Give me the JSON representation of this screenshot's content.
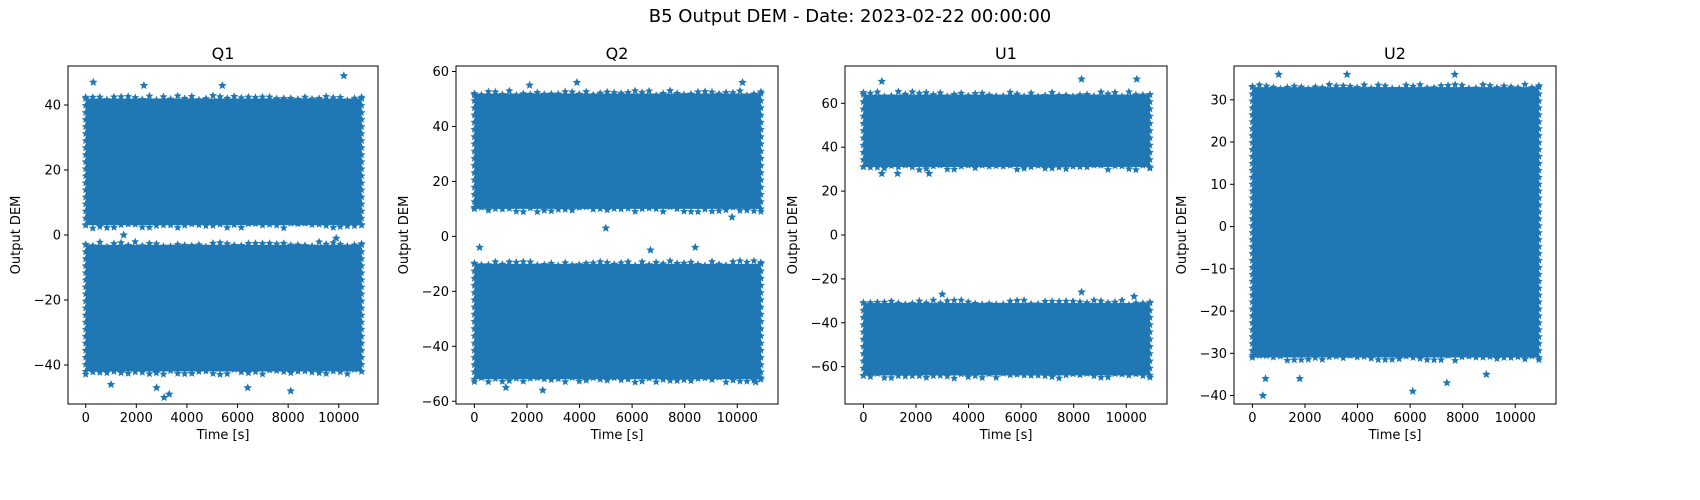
{
  "figure": {
    "suptitle": "B5 Output DEM - Date: 2023-02-22 00:00:00",
    "marker_color": "#1f77b4",
    "marker": "star"
  },
  "chart_data": [
    {
      "type": "scatter",
      "title": "Q1",
      "xlabel": "Time [s]",
      "ylabel": "Output DEM",
      "xlim": [
        -700,
        11550
      ],
      "ylim": [
        -52,
        52
      ],
      "xticks": [
        0,
        2000,
        4000,
        6000,
        8000,
        10000
      ],
      "yticks": [
        -40,
        -20,
        0,
        20,
        40
      ],
      "x_range": [
        0,
        10900
      ],
      "bands": [
        {
          "low": 3,
          "high": 42
        },
        {
          "low": -42,
          "high": -3
        }
      ],
      "outliers": [
        [
          300,
          47
        ],
        [
          10200,
          49
        ],
        [
          2300,
          46
        ],
        [
          5400,
          46
        ],
        [
          3100,
          -50
        ],
        [
          3300,
          -49
        ],
        [
          8100,
          -48
        ],
        [
          1000,
          -46
        ],
        [
          6400,
          -47
        ],
        [
          2800,
          -47
        ],
        [
          9900,
          -1
        ],
        [
          1500,
          0
        ]
      ]
    },
    {
      "type": "scatter",
      "title": "Q2",
      "xlabel": "Time [s]",
      "ylabel": "Output DEM",
      "xlim": [
        -700,
        11550
      ],
      "ylim": [
        -61,
        62
      ],
      "xticks": [
        0,
        2000,
        4000,
        6000,
        8000,
        10000
      ],
      "yticks": [
        -60,
        -40,
        -20,
        0,
        20,
        40,
        60
      ],
      "x_range": [
        0,
        10900
      ],
      "bands": [
        {
          "low": 10,
          "high": 52
        },
        {
          "low": -52,
          "high": -10
        }
      ],
      "outliers": [
        [
          2100,
          55
        ],
        [
          3900,
          56
        ],
        [
          10200,
          56
        ],
        [
          5000,
          3
        ],
        [
          200,
          -4
        ],
        [
          6700,
          -5
        ],
        [
          8400,
          -4
        ],
        [
          2600,
          -56
        ],
        [
          10700,
          -53
        ],
        [
          1200,
          -55
        ],
        [
          9800,
          7
        ]
      ]
    },
    {
      "type": "scatter",
      "title": "U1",
      "xlabel": "Time [s]",
      "ylabel": "Output DEM",
      "xlim": [
        -700,
        11550
      ],
      "ylim": [
        -77,
        77
      ],
      "xticks": [
        0,
        2000,
        4000,
        6000,
        8000,
        10000
      ],
      "yticks": [
        -60,
        -40,
        -20,
        0,
        20,
        40,
        60
      ],
      "x_range": [
        0,
        10900
      ],
      "bands": [
        {
          "low": 31,
          "high": 64
        },
        {
          "low": -64,
          "high": -31
        }
      ],
      "outliers": [
        [
          8300,
          71
        ],
        [
          10400,
          71
        ],
        [
          700,
          70
        ],
        [
          8300,
          -26
        ],
        [
          3000,
          -27
        ],
        [
          700,
          28
        ],
        [
          1300,
          28
        ],
        [
          2500,
          28
        ],
        [
          10300,
          -28
        ]
      ]
    },
    {
      "type": "scatter",
      "title": "U2",
      "xlabel": "Time [s]",
      "ylabel": "Output DEM",
      "xlim": [
        -700,
        11550
      ],
      "ylim": [
        -42,
        38
      ],
      "xticks": [
        0,
        2000,
        4000,
        6000,
        8000,
        10000
      ],
      "yticks": [
        -40,
        -30,
        -20,
        -10,
        0,
        10,
        20,
        30
      ],
      "x_range": [
        0,
        10900
      ],
      "bands": [
        {
          "low": -31,
          "high": 33
        }
      ],
      "outliers": [
        [
          3600,
          36
        ],
        [
          7700,
          36
        ],
        [
          1000,
          36
        ],
        [
          400,
          -40
        ],
        [
          6100,
          -39
        ],
        [
          7400,
          -37
        ],
        [
          500,
          -36
        ],
        [
          1800,
          -36
        ],
        [
          8900,
          -35
        ]
      ]
    }
  ]
}
